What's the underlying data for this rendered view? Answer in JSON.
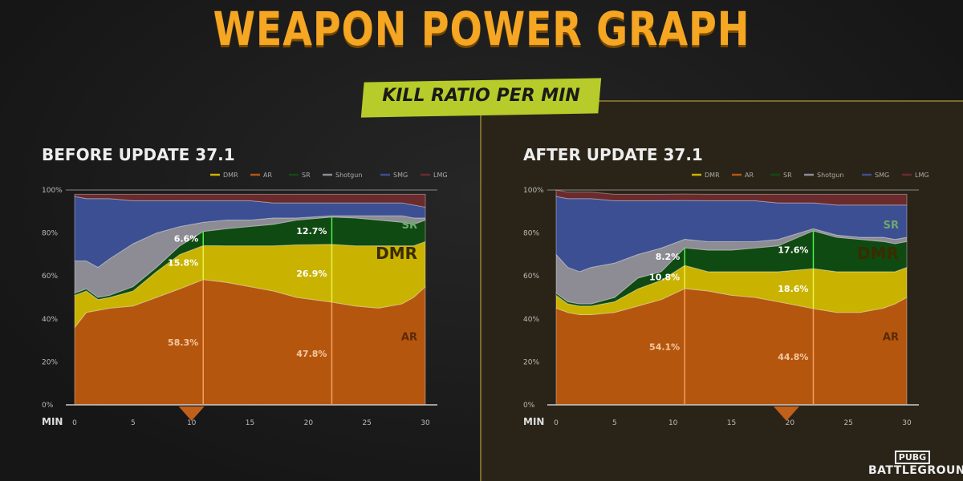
{
  "title": "WEAPON POWER GRAPH",
  "subtitle": "KILL RATIO PER MIN",
  "logo": {
    "line1": "PUBG",
    "line2": "BATTLEGROUNDS"
  },
  "colors": {
    "DMR": "#c9b300",
    "AR": "#b5560f",
    "SR": "#0f4a12",
    "Shotgun": "#8d8c94",
    "SMG": "#3b4f92",
    "LMG": "#6b2a2c",
    "title": "#f5a623",
    "badge": "#b7cc2a"
  },
  "chart_data": [
    {
      "type": "area",
      "stacked": true,
      "title": "BEFORE UPDATE 37.1",
      "xlabel": "MIN",
      "xlim": [
        0,
        30
      ],
      "ylim": [
        0,
        100
      ],
      "xticks": [
        "0",
        "5",
        "10",
        "15",
        "20",
        "25",
        "30"
      ],
      "yticks": [
        "0%",
        "20%",
        "40%",
        "60%",
        "80%",
        "100%"
      ],
      "legend": [
        "DMR",
        "AR",
        "SR",
        "Shotgun",
        "SMG",
        "LMG"
      ],
      "legend_position": "top-right",
      "x": [
        0,
        1,
        2,
        3,
        5,
        7,
        9,
        11,
        13,
        15,
        17,
        19,
        22,
        24,
        26,
        28,
        29,
        30
      ],
      "series": [
        {
          "name": "AR",
          "values": [
            36,
            43,
            44,
            45,
            46,
            50,
            54,
            58.3,
            57,
            55,
            53,
            50,
            47.8,
            46,
            45,
            47,
            50,
            55
          ]
        },
        {
          "name": "DMR",
          "values": [
            15,
            10,
            5,
            5,
            7,
            12,
            16,
            15.8,
            17,
            19,
            21,
            24.5,
            26.9,
            28,
            29,
            27,
            24,
            21
          ]
        },
        {
          "name": "SR",
          "values": [
            1,
            1,
            1,
            1,
            2,
            2,
            4,
            6.6,
            8,
            9,
            10,
            11.5,
            12.7,
            13,
            12,
            11,
            10,
            10
          ]
        },
        {
          "name": "Shotgun",
          "values": [
            15,
            13,
            14,
            17,
            20,
            16,
            9,
            4.3,
            4,
            3,
            3,
            1,
            0.6,
            1,
            2,
            3,
            3,
            1
          ]
        },
        {
          "name": "SMG",
          "values": [
            30,
            29,
            32,
            28,
            20,
            15,
            12,
            10,
            9,
            9,
            7,
            7,
            6,
            6,
            6,
            6,
            6,
            5
          ]
        },
        {
          "name": "LMG",
          "values": [
            1,
            2,
            2,
            2,
            3,
            3,
            3,
            3,
            3,
            3,
            4,
            4,
            4,
            4,
            4,
            4,
            5,
            6
          ]
        }
      ],
      "series_labels": [
        "SR",
        "DMR",
        "AR"
      ],
      "annotations": [
        {
          "x": 11,
          "SR": "6.6%",
          "DMR": "15.8%",
          "AR": "58.3%"
        },
        {
          "x": 22,
          "SR": "12.7%",
          "DMR": "26.9%",
          "AR": "47.8%"
        }
      ],
      "marker_x": 10
    },
    {
      "type": "area",
      "stacked": true,
      "title": "AFTER UPDATE 37.1",
      "xlabel": "MIN",
      "xlim": [
        0,
        30
      ],
      "ylim": [
        0,
        100
      ],
      "xticks": [
        "0",
        "5",
        "10",
        "15",
        "20",
        "25",
        "30"
      ],
      "yticks": [
        "0%",
        "20%",
        "40%",
        "60%",
        "80%",
        "100%"
      ],
      "legend": [
        "DMR",
        "AR",
        "SR",
        "Shotgun",
        "SMG",
        "LMG"
      ],
      "legend_position": "top-right",
      "x": [
        0,
        1,
        2,
        3,
        5,
        7,
        9,
        11,
        13,
        15,
        17,
        19,
        22,
        24,
        26,
        28,
        29,
        30
      ],
      "series": [
        {
          "name": "AR",
          "values": [
            45,
            43,
            42,
            42,
            43,
            46,
            49,
            54.1,
            53,
            51,
            50,
            48,
            44.8,
            43,
            43,
            45,
            47,
            50
          ]
        },
        {
          "name": "DMR",
          "values": [
            6,
            4,
            4,
            4,
            5,
            8,
            9,
            10.8,
            9,
            11,
            12,
            14,
            18.6,
            19,
            19,
            17,
            15,
            14
          ]
        },
        {
          "name": "SR",
          "values": [
            1,
            1,
            1,
            1,
            2,
            5,
            4,
            8.2,
            10,
            10,
            11,
            12,
            17.6,
            16,
            15,
            14,
            13,
            12
          ]
        },
        {
          "name": "Shotgun",
          "values": [
            18,
            16,
            15,
            17,
            16,
            11,
            11,
            4,
            4,
            4,
            3,
            3,
            1,
            1,
            1,
            2,
            2,
            2
          ]
        },
        {
          "name": "SMG",
          "values": [
            27,
            32,
            34,
            32,
            29,
            25,
            22,
            18,
            19,
            19,
            19,
            17,
            12,
            14,
            15,
            15,
            16,
            15
          ]
        },
        {
          "name": "LMG",
          "values": [
            3,
            3,
            3,
            3,
            3,
            3,
            3,
            3,
            3,
            3,
            3,
            4,
            4,
            5,
            5,
            5,
            5,
            5
          ]
        }
      ],
      "series_labels": [
        "SR",
        "DMR",
        "AR"
      ],
      "annotations": [
        {
          "x": 11,
          "SR": "8.2%",
          "DMR": "10.8%",
          "AR": "54.1%"
        },
        {
          "x": 22,
          "SR": "17.6%",
          "DMR": "18.6%",
          "AR": "44.8%"
        }
      ],
      "marker_x": 19.7
    }
  ]
}
